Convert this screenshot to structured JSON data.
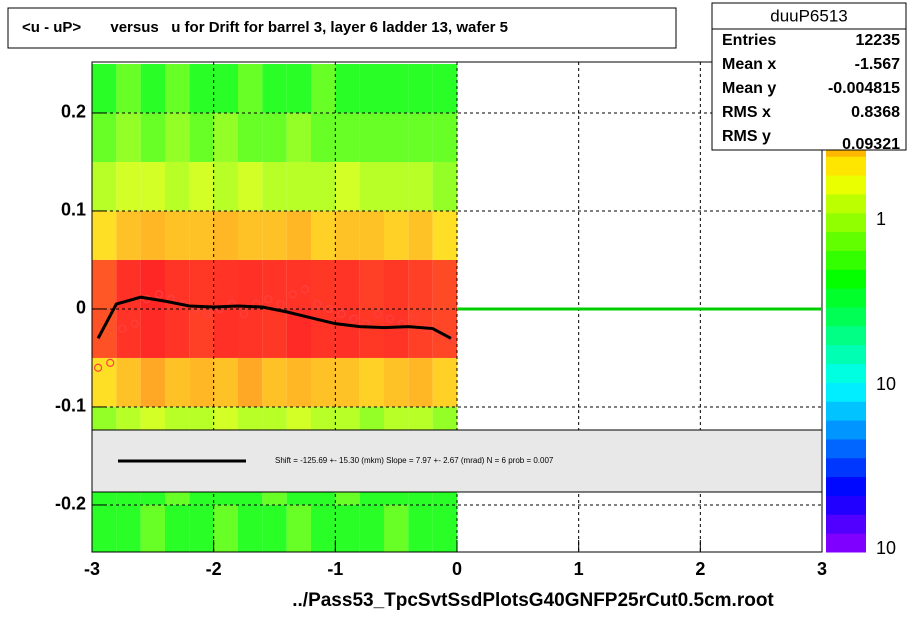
{
  "chart_data": {
    "type": "heatmap",
    "title": "<u - uP>       versus   u for Drift for barrel 3, layer 6 ladder 13, wafer 5",
    "x_label": "../Pass53_TpcSvtSsdPlotsG40GNFP25rCut0.5cm.root",
    "xlim": [
      -3,
      3
    ],
    "xticks": [
      -3,
      -2,
      -1,
      0,
      1,
      2,
      3
    ],
    "ylim": [
      -0.248,
      0.252
    ],
    "yticks": [
      -0.2,
      -0.1,
      0,
      0.1,
      0.2
    ],
    "grid": true,
    "xbins": [
      -3,
      -2.8,
      -2.6,
      -2.4,
      -2.2,
      -2,
      -1.8,
      -1.6,
      -1.4,
      -1.2,
      -1,
      -0.8,
      -0.6,
      -0.4,
      -0.2,
      0
    ],
    "ybins": [
      -0.25,
      -0.2,
      -0.15,
      -0.1,
      -0.05,
      0,
      0.05,
      0.1,
      0.15,
      0.2,
      0.25
    ],
    "z": [
      [
        2,
        2,
        3,
        2,
        2,
        3,
        2,
        2,
        3,
        2,
        2,
        2,
        3,
        2,
        2
      ],
      [
        2,
        2,
        2,
        3,
        2,
        2,
        2,
        3,
        2,
        2,
        3,
        2,
        2,
        2,
        2
      ],
      [
        4,
        5,
        6,
        5,
        5,
        6,
        5,
        5,
        6,
        5,
        5,
        4,
        5,
        5,
        4
      ],
      [
        10,
        12,
        14,
        12,
        13,
        12,
        14,
        12,
        13,
        12,
        12,
        11,
        12,
        13,
        11
      ],
      [
        25,
        30,
        32,
        30,
        28,
        31,
        30,
        29,
        32,
        30,
        31,
        29,
        30,
        28,
        27
      ],
      [
        24,
        31,
        33,
        30,
        29,
        30,
        31,
        30,
        30,
        29,
        30,
        28,
        29,
        28,
        26
      ],
      [
        10,
        12,
        13,
        12,
        12,
        13,
        12,
        12,
        13,
        11,
        12,
        12,
        11,
        12,
        10
      ],
      [
        5,
        6,
        6,
        5,
        6,
        5,
        6,
        5,
        5,
        5,
        6,
        5,
        5,
        5,
        4
      ],
      [
        3,
        4,
        3,
        4,
        3,
        4,
        3,
        3,
        4,
        3,
        3,
        3,
        3,
        3,
        3
      ],
      [
        2,
        3,
        2,
        3,
        2,
        2,
        3,
        2,
        2,
        3,
        2,
        2,
        2,
        2,
        2
      ]
    ],
    "colorbar_labels": [
      "1",
      "10",
      "10"
    ],
    "profile": {
      "color": "#ff4040",
      "x": [
        -2.95,
        -2.85,
        -2.75,
        -2.65,
        -2.55,
        -2.45,
        -2.35,
        -2.25,
        -2.15,
        -2.05,
        -1.95,
        -1.85,
        -1.75,
        -1.65,
        -1.55,
        -1.45,
        -1.35,
        -1.25,
        -1.15,
        -1.05,
        -0.95,
        -0.85,
        -0.75,
        -0.65,
        -0.55,
        -0.45,
        -0.35,
        -0.25,
        -0.15,
        -0.05
      ],
      "values": [
        -0.06,
        -0.055,
        -0.02,
        -0.015,
        0.01,
        0.015,
        0.01,
        0.005,
        0,
        -0.005,
        0,
        0.005,
        -0.005,
        0.005,
        0.01,
        0.005,
        0.015,
        0.02,
        0.005,
        0,
        -0.005,
        -0.01,
        -0.015,
        -0.005,
        -0.01,
        -0.015,
        -0.01,
        -0.02,
        -0.025,
        -0.03
      ]
    },
    "fit": {
      "color": "#000000",
      "x": [
        -2.95,
        -2.8,
        -2.6,
        -2.4,
        -2.2,
        -2,
        -1.8,
        -1.6,
        -1.4,
        -1.2,
        -1,
        -0.8,
        -0.6,
        -0.4,
        -0.2,
        -0.05
      ],
      "values": [
        -0.03,
        0.005,
        0.012,
        0.008,
        0.003,
        0.002,
        0.003,
        0.002,
        -0.003,
        -0.009,
        -0.015,
        -0.018,
        -0.019,
        -0.018,
        -0.02,
        -0.03
      ]
    },
    "flat": {
      "color": "#00cc00",
      "x": [
        0,
        3
      ],
      "values": [
        0,
        0
      ]
    },
    "fit_label": "Shift =  -125.69 +- 15.30 (mkm) Slope =     7.97 +- 2.67 (mrad)  N = 6 prob = 0.007",
    "stats": {
      "name": "duuP6513",
      "rows": [
        {
          "label": "Entries",
          "value": 12235
        },
        {
          "label": "Mean x",
          "value": -1.567
        },
        {
          "label": "Mean y",
          "value": -0.004815
        },
        {
          "label": "RMS x",
          "value": 0.8368
        },
        {
          "label": "RMS y",
          "value": 0.09321
        }
      ]
    }
  }
}
